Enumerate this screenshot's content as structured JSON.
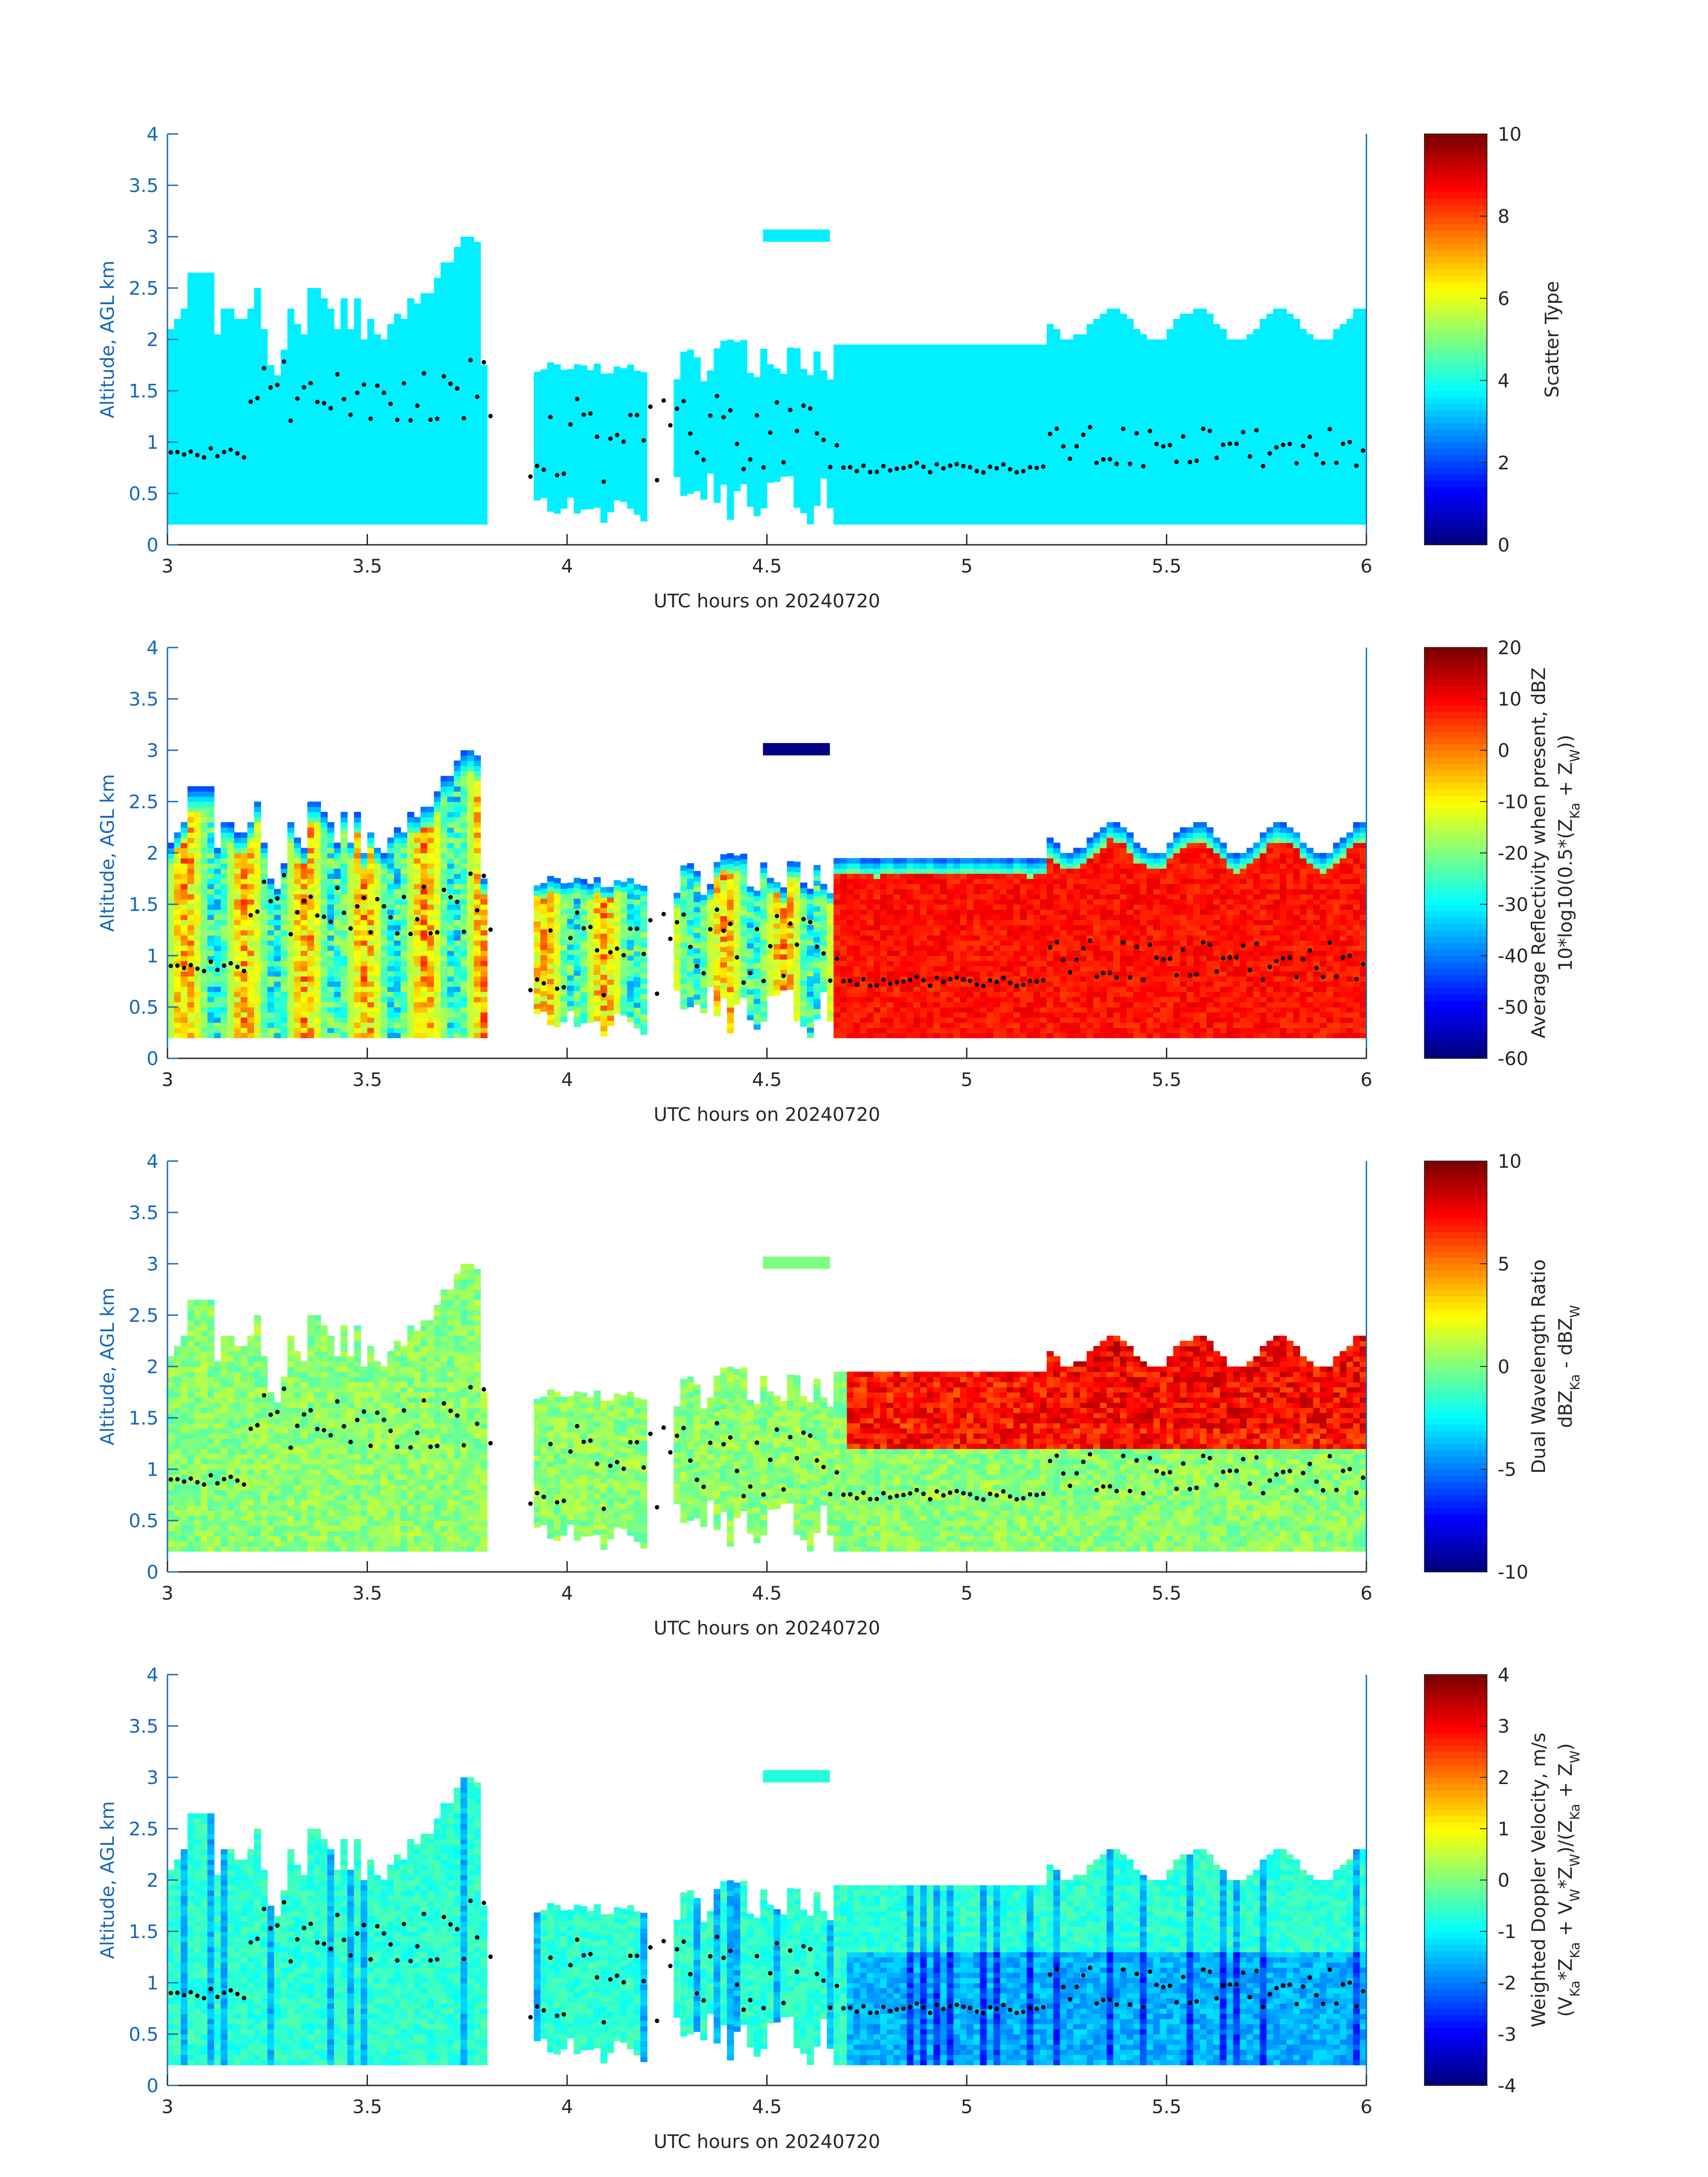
{
  "chart_data": [
    {
      "type": "heatmap",
      "xlabel": "UTC hours on 20240720",
      "ylabel": "Altitude, AGL km",
      "xlim": [
        3,
        6
      ],
      "ylim": [
        0,
        4
      ],
      "xticks": [
        "3",
        "3.5",
        "4",
        "4.5",
        "5",
        "5.5",
        "6"
      ],
      "yticks": [
        "0",
        "0.5",
        "1",
        "1.5",
        "2",
        "2.5",
        "3",
        "3.5",
        "4"
      ],
      "colorbar": {
        "label": [
          "Scatter Type"
        ],
        "range": [
          0,
          10
        ],
        "ticks": [
          "0",
          "2",
          "4",
          "6",
          "8",
          "10"
        ],
        "colormap": "jet"
      }
    },
    {
      "type": "heatmap",
      "xlabel": "UTC hours on 20240720",
      "ylabel": "Altitude, AGL km",
      "xlim": [
        3,
        6
      ],
      "ylim": [
        0,
        4
      ],
      "xticks": [
        "3",
        "3.5",
        "4",
        "4.5",
        "5",
        "5.5",
        "6"
      ],
      "yticks": [
        "0",
        "0.5",
        "1",
        "1.5",
        "2",
        "2.5",
        "3",
        "3.5",
        "4"
      ],
      "colorbar": {
        "label": [
          "Average Reflectivity when present, dBZ",
          "10*log10(0.5*(Z_Ka + Z_W))"
        ],
        "range": [
          -60,
          20
        ],
        "ticks": [
          "-60",
          "-50",
          "-40",
          "-30",
          "-20",
          "-10",
          "0",
          "10",
          "20"
        ],
        "colormap": "jet"
      }
    },
    {
      "type": "heatmap",
      "xlabel": "UTC hours on 20240720",
      "ylabel": "Altitude, AGL km",
      "xlim": [
        3,
        6
      ],
      "ylim": [
        0,
        4
      ],
      "xticks": [
        "3",
        "3.5",
        "4",
        "4.5",
        "5",
        "5.5",
        "6"
      ],
      "yticks": [
        "0",
        "0.5",
        "1",
        "1.5",
        "2",
        "2.5",
        "3",
        "3.5",
        "4"
      ],
      "colorbar": {
        "label": [
          "Dual Wavelength Ratio",
          "dBZ_Ka - dBZ_W"
        ],
        "range": [
          -10,
          10
        ],
        "ticks": [
          "-10",
          "-5",
          "0",
          "5",
          "10"
        ],
        "colormap": "jet"
      }
    },
    {
      "type": "heatmap",
      "xlabel": "UTC hours on 20240720",
      "ylabel": "Altitude, AGL km",
      "xlim": [
        3,
        6
      ],
      "ylim": [
        0,
        4
      ],
      "xticks": [
        "3",
        "3.5",
        "4",
        "4.5",
        "5",
        "5.5",
        "6"
      ],
      "yticks": [
        "0",
        "0.5",
        "1",
        "1.5",
        "2",
        "2.5",
        "3",
        "3.5",
        "4"
      ],
      "colorbar": {
        "label": [
          "Weighted Doppler Velocity, m/s",
          "(V_Ka*Z_Ka + V_W*Z_W)/(Z_Ka + Z_W)"
        ],
        "range": [
          -4,
          4
        ],
        "ticks": [
          "-4",
          "-3",
          "-2",
          "-1",
          "0",
          "1",
          "2",
          "3",
          "4"
        ],
        "colormap": "jet"
      }
    }
  ]
}
